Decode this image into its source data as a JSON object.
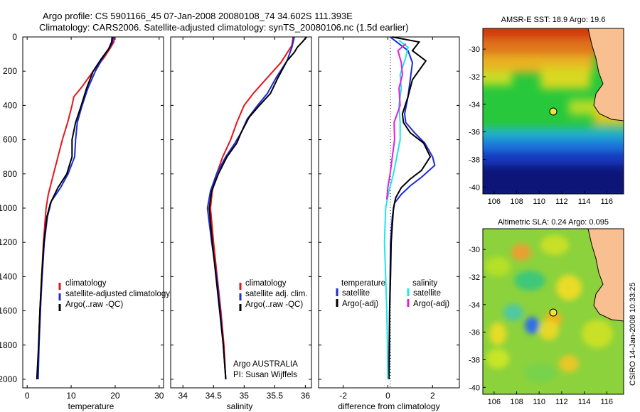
{
  "header": {
    "line1": "Argo profile: CS 5901166_45 07-Jan-2008 20080108_74 34.602S 111.393E",
    "line2": "Climatology: CARS2006. Satellite-adjusted climatology: synTS_20080106.nc (1.5d earlier)"
  },
  "side_text": "CSIRO 14-Jan-2008 10:33:25",
  "colors": {
    "red": "#e8141c",
    "blue": "#1c2ad8",
    "black": "#000000",
    "cyan": "#20e6e6",
    "magenta": "#e41ce0"
  },
  "chart_data": [
    {
      "type": "line",
      "xlabel": "temperature",
      "xlim": [
        -1,
        31
      ],
      "xticks": [
        "0",
        "10",
        "20",
        "30"
      ],
      "ylim": [
        0,
        2050
      ],
      "yticks": [
        "0",
        "200",
        "400",
        "600",
        "800",
        "1000",
        "1200",
        "1400",
        "1600",
        "1800",
        "2000"
      ],
      "legend": [
        "climatology",
        "satellite-adjusted climatology",
        "Argo(..raw -QC)"
      ],
      "series": [
        {
          "name": "climatology",
          "color": "red",
          "points": [
            [
              19.8,
              0
            ],
            [
              19.7,
              30
            ],
            [
              19,
              60
            ],
            [
              17.5,
              120
            ],
            [
              15,
              200
            ],
            [
              12.5,
              290
            ],
            [
              10.6,
              350
            ],
            [
              10.2,
              400
            ],
            [
              9.2,
              500
            ],
            [
              8,
              600
            ],
            [
              7,
              700
            ],
            [
              6,
              800
            ],
            [
              4.8,
              920
            ],
            [
              4.3,
              1000
            ],
            [
              3.7,
              1200
            ],
            [
              3.3,
              1400
            ],
            [
              2.9,
              1600
            ],
            [
              2.6,
              1800
            ],
            [
              2.4,
              2000
            ]
          ]
        },
        {
          "name": "satellite-adjusted climatology",
          "color": "blue",
          "points": [
            [
              19.5,
              0
            ],
            [
              19.4,
              30
            ],
            [
              18.8,
              60
            ],
            [
              17.5,
              110
            ],
            [
              15.5,
              200
            ],
            [
              13.8,
              300
            ],
            [
              12.5,
              400
            ],
            [
              11.4,
              500
            ],
            [
              11,
              600
            ],
            [
              10.8,
              700
            ],
            [
              9.3,
              800
            ],
            [
              7.6,
              880
            ],
            [
              5.5,
              960
            ],
            [
              4.6,
              1050
            ],
            [
              3.9,
              1200
            ],
            [
              3.4,
              1400
            ],
            [
              3,
              1600
            ],
            [
              2.7,
              1800
            ],
            [
              2.5,
              2000
            ]
          ]
        },
        {
          "name": "Argo(..raw -QC)",
          "color": "black",
          "points": [
            [
              19.3,
              0
            ],
            [
              19.2,
              30
            ],
            [
              18.5,
              70
            ],
            [
              16.8,
              130
            ],
            [
              15,
              200
            ],
            [
              13.5,
              300
            ],
            [
              12.3,
              400
            ],
            [
              11,
              500
            ],
            [
              10.2,
              600
            ],
            [
              10.2,
              700
            ],
            [
              9,
              800
            ],
            [
              7,
              880
            ],
            [
              5.3,
              970
            ],
            [
              4.5,
              1050
            ],
            [
              3.8,
              1200
            ],
            [
              3.3,
              1400
            ],
            [
              2.9,
              1600
            ],
            [
              2.6,
              1800
            ],
            [
              2.2,
              2000
            ]
          ]
        }
      ]
    },
    {
      "type": "line",
      "xlabel": "salinity",
      "xlim": [
        33.8,
        36.1
      ],
      "xticks": [
        "34",
        "34.5",
        "35",
        "35.5",
        "36"
      ],
      "ylim": [
        0,
        2050
      ],
      "legend": [
        "climatology",
        "satellite adj. clim.",
        "Argo(..raw -QC)"
      ],
      "annotations": [
        "Argo AUSTRALIA",
        "PI: Susan Wijffels"
      ],
      "series": [
        {
          "name": "climatology",
          "color": "red",
          "points": [
            [
              35.8,
              0
            ],
            [
              35.78,
              50
            ],
            [
              35.6,
              150
            ],
            [
              35.35,
              250
            ],
            [
              35.15,
              330
            ],
            [
              35,
              400
            ],
            [
              34.88,
              500
            ],
            [
              34.78,
              600
            ],
            [
              34.65,
              700
            ],
            [
              34.55,
              800
            ],
            [
              34.48,
              900
            ],
            [
              34.45,
              1000
            ],
            [
              34.5,
              1200
            ],
            [
              34.56,
              1400
            ],
            [
              34.62,
              1600
            ],
            [
              34.67,
              1800
            ],
            [
              34.7,
              2000
            ]
          ]
        },
        {
          "name": "satellite adj. clim.",
          "color": "blue",
          "points": [
            [
              35.82,
              0
            ],
            [
              35.78,
              60
            ],
            [
              35.7,
              140
            ],
            [
              35.52,
              240
            ],
            [
              35.38,
              330
            ],
            [
              35.22,
              400
            ],
            [
              35.05,
              480
            ],
            [
              34.95,
              560
            ],
            [
              34.85,
              620
            ],
            [
              34.7,
              700
            ],
            [
              34.55,
              800
            ],
            [
              34.45,
              900
            ],
            [
              34.4,
              1000
            ],
            [
              34.47,
              1200
            ],
            [
              34.55,
              1400
            ],
            [
              34.61,
              1600
            ],
            [
              34.66,
              1800
            ],
            [
              34.7,
              2000
            ]
          ]
        },
        {
          "name": "Argo(..raw -QC)",
          "color": "black",
          "points": [
            [
              36.02,
              0
            ],
            [
              35.95,
              30
            ],
            [
              35.87,
              60
            ],
            [
              35.82,
              90
            ],
            [
              35.7,
              140
            ],
            [
              35.55,
              240
            ],
            [
              35.43,
              330
            ],
            [
              35.25,
              400
            ],
            [
              35.08,
              470
            ],
            [
              34.95,
              560
            ],
            [
              34.88,
              620
            ],
            [
              34.72,
              700
            ],
            [
              34.58,
              800
            ],
            [
              34.47,
              900
            ],
            [
              34.43,
              1000
            ],
            [
              34.48,
              1200
            ],
            [
              34.54,
              1400
            ],
            [
              34.6,
              1600
            ],
            [
              34.66,
              1800
            ],
            [
              34.7,
              2000
            ]
          ]
        }
      ]
    },
    {
      "type": "line",
      "xlabel": "difference from climatology",
      "xlim": [
        -3.1,
        3.2
      ],
      "xticks": [
        "-2",
        "0",
        "2"
      ],
      "ylim": [
        0,
        2050
      ],
      "legend_headers": [
        "temperature",
        "salinity"
      ],
      "legend": [
        "satellite",
        "Argo(-adj)",
        "satellite",
        "Argo(-adj)"
      ],
      "series": [
        {
          "name": "temperature satellite",
          "color": "blue",
          "points": [
            [
              0.1,
              0
            ],
            [
              0.9,
              80
            ],
            [
              1.1,
              150
            ],
            [
              1,
              250
            ],
            [
              0.9,
              350
            ],
            [
              0.75,
              450
            ],
            [
              0.8,
              500
            ],
            [
              1.2,
              560
            ],
            [
              1.65,
              620
            ],
            [
              2.0,
              700
            ],
            [
              2.1,
              750
            ],
            [
              1.5,
              820
            ],
            [
              1.0,
              870
            ],
            [
              0.6,
              920
            ],
            [
              0.3,
              970
            ],
            [
              0.2,
              1050
            ],
            [
              0.12,
              1200
            ],
            [
              0.1,
              1400
            ],
            [
              0.08,
              1600
            ],
            [
              0.08,
              1800
            ],
            [
              0.05,
              2000
            ]
          ]
        },
        {
          "name": "temperature Argo(-adj)",
          "color": "black",
          "points": [
            [
              0.2,
              0
            ],
            [
              1.4,
              30
            ],
            [
              1.1,
              80
            ],
            [
              1.7,
              140
            ],
            [
              1.1,
              250
            ],
            [
              0.9,
              350
            ],
            [
              0.65,
              450
            ],
            [
              0.7,
              500
            ],
            [
              1.0,
              560
            ],
            [
              1.6,
              620
            ],
            [
              1.9,
              700
            ],
            [
              1.5,
              780
            ],
            [
              1.0,
              830
            ],
            [
              0.6,
              880
            ],
            [
              0.35,
              940
            ],
            [
              0.25,
              1000
            ],
            [
              0.15,
              1200
            ],
            [
              0.12,
              1400
            ],
            [
              0.08,
              1600
            ],
            [
              0.06,
              1800
            ],
            [
              0.05,
              2000
            ]
          ]
        },
        {
          "name": "salinity satellite",
          "color": "cyan",
          "points": [
            [
              0.5,
              20
            ],
            [
              0.9,
              60
            ],
            [
              0.8,
              120
            ],
            [
              0.55,
              220
            ],
            [
              0.6,
              300
            ],
            [
              0.5,
              400
            ],
            [
              0.55,
              500
            ],
            [
              0.55,
              600
            ],
            [
              0.4,
              700
            ],
            [
              0.25,
              800
            ],
            [
              0.05,
              900
            ],
            [
              -0.1,
              1000
            ],
            [
              -0.15,
              1200
            ],
            [
              -0.1,
              1400
            ],
            [
              -0.05,
              1600
            ],
            [
              -0.02,
              1800
            ],
            [
              0.0,
              2000
            ]
          ]
        },
        {
          "name": "salinity Argo(-adj)",
          "color": "magenta",
          "points": [
            [
              0.8,
              40
            ],
            [
              0.45,
              80
            ],
            [
              0.6,
              150
            ],
            [
              0.65,
              220
            ],
            [
              0.5,
              300
            ],
            [
              0.55,
              400
            ],
            [
              0.28,
              500
            ],
            [
              0.3,
              600
            ],
            [
              0.2,
              700
            ],
            [
              0.1,
              800
            ],
            [
              0.0,
              880
            ],
            [
              -0.05,
              950
            ]
          ]
        }
      ]
    },
    {
      "type": "heatmap",
      "title": "AMSR-E SST: 18.9 Argo: 19.6",
      "xlim": [
        105,
        117.5
      ],
      "ylim": [
        -40.5,
        -28.5
      ],
      "xticks": [
        "106",
        "108",
        "110",
        "112",
        "114",
        "116"
      ],
      "yticks": [
        "-30",
        "-32",
        "-34",
        "-36",
        "-38",
        "-40"
      ],
      "marker": [
        111.4,
        -34.6
      ]
    },
    {
      "type": "heatmap",
      "title": "Altimetric SLA: 0.24 Argo: 0.095",
      "xlim": [
        105,
        117.5
      ],
      "ylim": [
        -40.5,
        -28.5
      ],
      "xticks": [
        "106",
        "108",
        "110",
        "112",
        "114",
        "116"
      ],
      "yticks": [
        "-30",
        "-32",
        "-34",
        "-36",
        "-38",
        "-40"
      ],
      "marker": [
        111.4,
        -34.6
      ]
    }
  ]
}
